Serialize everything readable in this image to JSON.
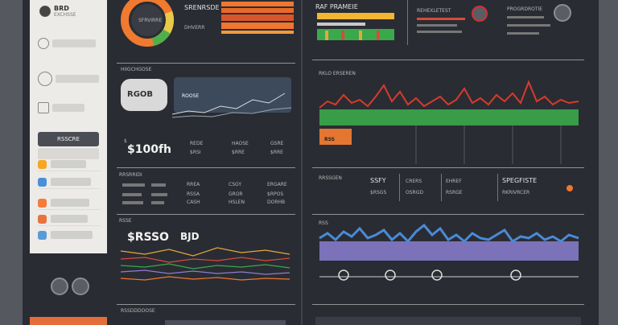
{
  "sidebar": {
    "header_title": "BRD",
    "header_sub": "EXCHSSE",
    "items": [
      {
        "label": "",
        "icon": "user-icon"
      },
      {
        "label": "",
        "icon": "shield-icon"
      },
      {
        "label": "",
        "icon": "leaf-icon"
      }
    ],
    "button_label": "RSSCRE",
    "rows": [
      {
        "label": "",
        "color": "#f5a623"
      },
      {
        "label": "",
        "color": "#4a90d9"
      },
      {
        "label": "",
        "color": "#f57c3a"
      },
      {
        "label": "",
        "color": "#e8743b"
      },
      {
        "label": "",
        "color": "#5b9bd5"
      }
    ]
  },
  "col2": {
    "donut_label": "SFRVIRRE",
    "kpi_title": "SRENRSDE",
    "kpi_sub": "DHVERR",
    "section1_title": "HIIGCHGOSE",
    "bubble_text": "RGOB",
    "panel_tag": "ROOSE",
    "big_value": "$100fh",
    "mini_stats": [
      {
        "label": "REDE",
        "value": "$RSI"
      },
      {
        "label": "HAOSE",
        "value": "$RRE"
      },
      {
        "label": "GSRE",
        "value": "$RRE"
      }
    ],
    "section2_title": "RRSRRIDI",
    "table_cols": [
      {
        "head": "",
        "v1": "",
        "v2": ""
      },
      {
        "head": "RREA",
        "v1": "RSSA",
        "v2": "CASH"
      },
      {
        "head": "CSGY",
        "v1": "GROR",
        "v2": "HSLEN"
      },
      {
        "head": "ERGARE",
        "v1": "$RPOS",
        "v2": "DORHB"
      }
    ],
    "section3_title": "RSSE",
    "section3_big": "$RSSO",
    "section3_big2": "BJD",
    "section4_title": "RSSDDDOOSE"
  },
  "col3": {
    "header_title": "RAF PRAMEIE",
    "top_icon1_label": "REHEXLETEST",
    "top_icon2_label": "PROGRDROTIE",
    "chart1_title": "RKLO ERSEREN",
    "chart1_tag": "RSS",
    "table_title": "RRSSGEN",
    "cols": [
      {
        "head": "SSFY",
        "v": "$RSGS"
      },
      {
        "head": "CRERS",
        "v": "OSRGD"
      },
      {
        "head": "EHREF",
        "v": "RSRGE"
      },
      {
        "head": "SPEGFISTE",
        "v": "RKRIVRCER"
      }
    ],
    "chart2_title": "RSS"
  },
  "colors": {
    "accent": "#f0772e",
    "green": "#3aa94b",
    "red": "#d63b2b",
    "blue": "#4a8ad6",
    "purple": "#8a7fd1",
    "yellow": "#f2b632"
  }
}
